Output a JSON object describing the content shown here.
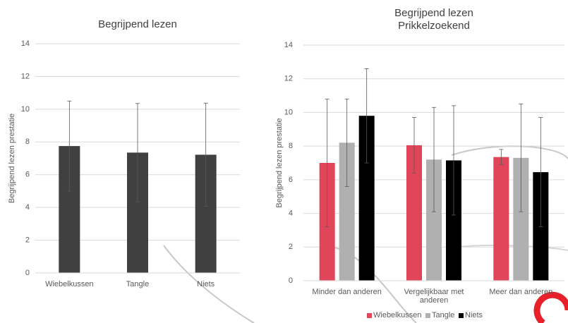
{
  "chart_data": [
    {
      "type": "bar",
      "title": "Begrijpend lezen",
      "y_label": "Begrijpend lezen prestatie",
      "categories": [
        "Wiebelkussen",
        "Tangle",
        "Niets"
      ],
      "values": [
        7.75,
        7.35,
        7.22
      ],
      "errors": [
        2.75,
        3.0,
        3.15
      ],
      "color": "#404040",
      "ylim": [
        0,
        14
      ],
      "yticks": [
        0,
        2,
        4,
        6,
        8,
        10,
        12,
        14
      ],
      "grid": true
    },
    {
      "type": "grouped_bar",
      "title": "Begrijpend lezen",
      "subtitle": "Prikkelzoekend",
      "y_label": "Begrijpend lezen prestatie",
      "categories": [
        "Minder dan anderen",
        "Vergelijkbaar met anderen",
        "Meer dan anderen"
      ],
      "series": [
        {
          "name": "Wiebelkussen",
          "color": "#e0455a",
          "values": [
            7.0,
            8.05,
            7.35
          ],
          "errors": [
            3.8,
            1.65,
            0.45
          ]
        },
        {
          "name": "Tangle",
          "color": "#b0b0b0",
          "values": [
            8.2,
            7.2,
            7.3
          ],
          "errors": [
            2.6,
            3.1,
            3.2
          ]
        },
        {
          "name": "Niets",
          "color": "#000000",
          "values": [
            9.8,
            7.15,
            6.45
          ],
          "errors": [
            2.8,
            3.25,
            3.25
          ]
        }
      ],
      "ylim": [
        0,
        14
      ],
      "yticks": [
        0,
        2,
        4,
        6,
        8,
        10,
        12,
        14
      ],
      "grid": true,
      "legend": "bottom"
    }
  ]
}
